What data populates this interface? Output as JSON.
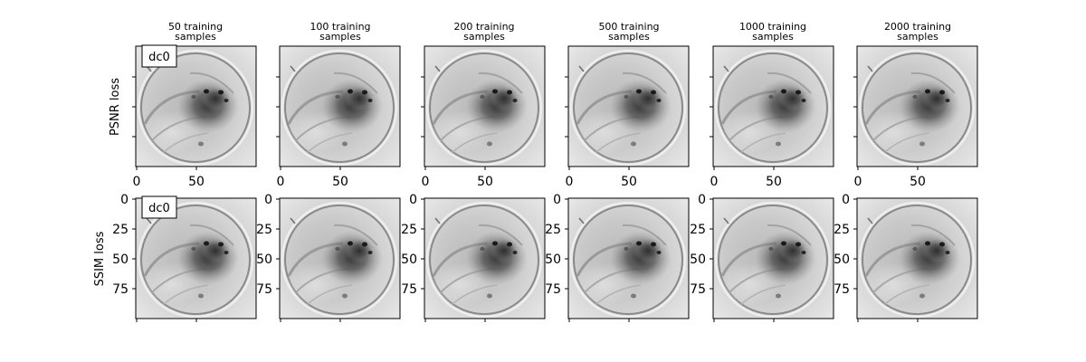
{
  "columns": [
    {
      "line1": "50 training",
      "line2": "samples"
    },
    {
      "line1": "100 training",
      "line2": "samples"
    },
    {
      "line1": "200 training",
      "line2": "samples"
    },
    {
      "line1": "500 training",
      "line2": "samples"
    },
    {
      "line1": "1000 training",
      "line2": "samples"
    },
    {
      "line1": "2000 training",
      "line2": "samples"
    }
  ],
  "rows": [
    {
      "label": "PSNR loss",
      "badge": "dc0"
    },
    {
      "label": "SSIM loss",
      "badge": "dc0"
    }
  ],
  "x_tick_labels": [
    "0",
    "50"
  ],
  "y_tick_labels": [
    "0",
    "25",
    "50",
    "75"
  ],
  "image": {
    "width": 100,
    "height": 100,
    "colormap": "gray"
  }
}
